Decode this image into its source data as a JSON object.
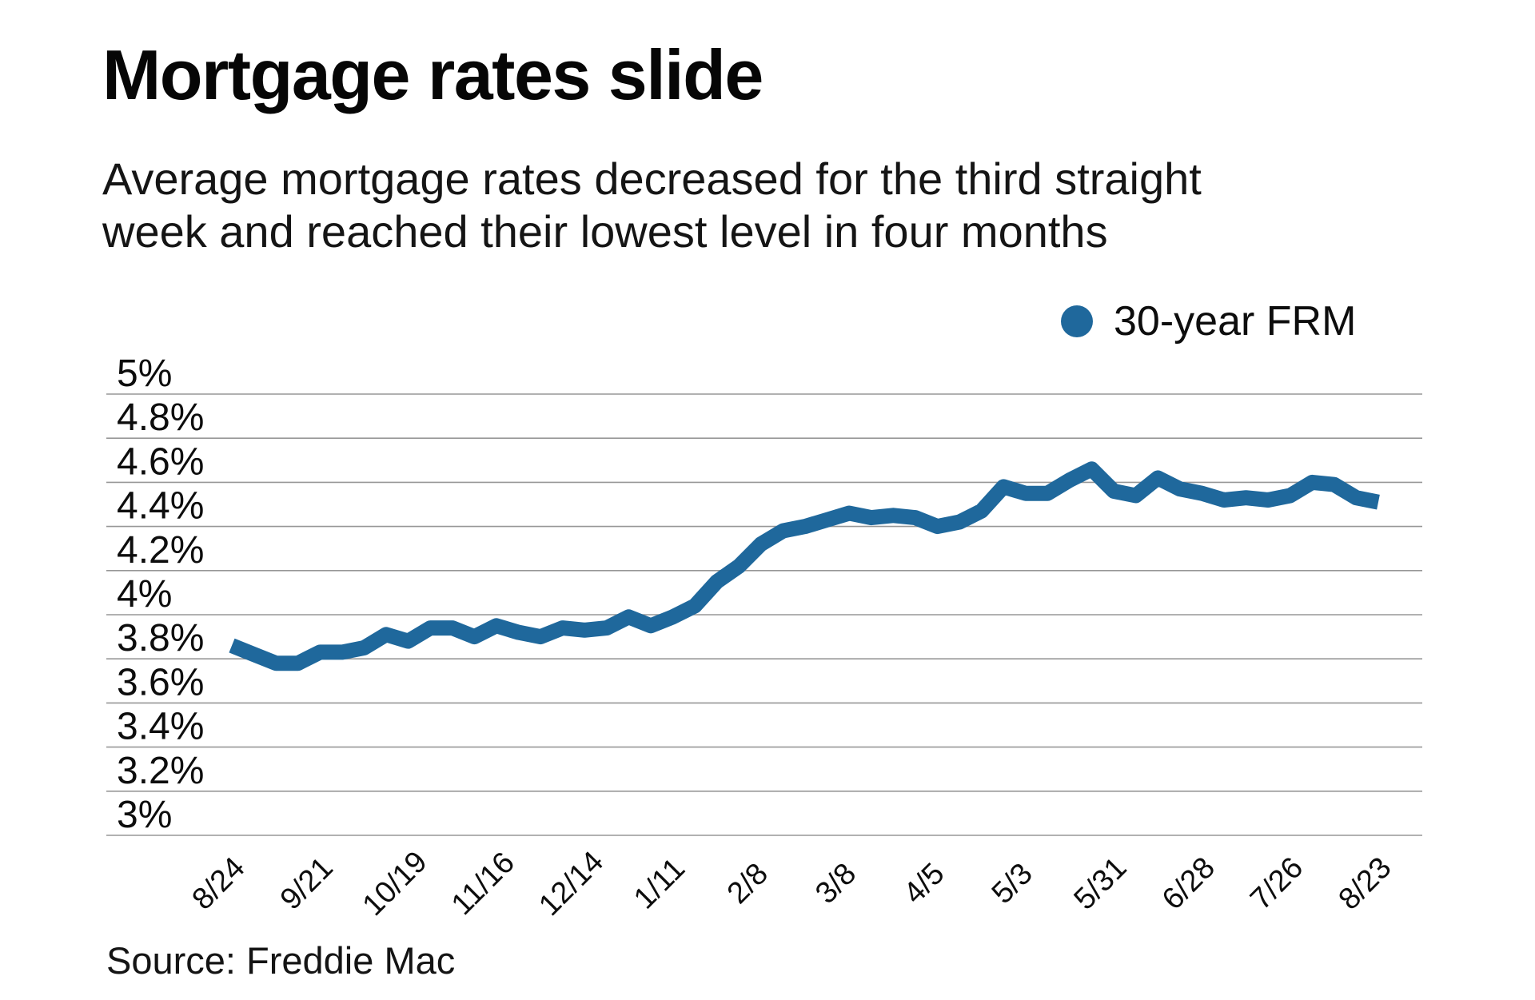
{
  "header": {
    "title": "Mortgage rates slide",
    "subtitle_line1": "Average mortgage rates decreased for the third straight",
    "subtitle_line2": "week and reached their lowest level in four months"
  },
  "legend": {
    "label": "30-year FRM",
    "marker_color": "#1f689c"
  },
  "source_note": "Source: Freddie Mac",
  "chart_data": {
    "type": "line",
    "title": "Mortgage rates slide",
    "subtitle": "Average mortgage rates decreased for the third straight week and reached their lowest level in four months",
    "series": [
      {
        "name": "30-year FRM",
        "color": "#1f689c",
        "values": [
          3.86,
          3.82,
          3.78,
          3.78,
          3.83,
          3.83,
          3.85,
          3.91,
          3.88,
          3.94,
          3.94,
          3.9,
          3.95,
          3.92,
          3.9,
          3.94,
          3.93,
          3.94,
          3.99,
          3.95,
          3.99,
          4.04,
          4.15,
          4.22,
          4.32,
          4.38,
          4.4,
          4.43,
          4.46,
          4.44,
          4.45,
          4.44,
          4.4,
          4.42,
          4.47,
          4.58,
          4.55,
          4.55,
          4.61,
          4.66,
          4.56,
          4.54,
          4.62,
          4.57,
          4.55,
          4.52,
          4.53,
          4.52,
          4.54,
          4.6,
          4.59,
          4.53,
          4.51
        ]
      }
    ],
    "x_tick_labels": [
      "8/24",
      "9/21",
      "10/19",
      "11/16",
      "12/14",
      "1/11",
      "2/8",
      "3/8",
      "4/5",
      "5/3",
      "5/31",
      "6/28",
      "7/26",
      "8/23"
    ],
    "x_tick_every": 4,
    "y_ticks": [
      {
        "value": 5.0,
        "label": "5%"
      },
      {
        "value": 4.8,
        "label": "4.8%"
      },
      {
        "value": 4.6,
        "label": "4.6%"
      },
      {
        "value": 4.4,
        "label": "4.4%"
      },
      {
        "value": 4.2,
        "label": "4.2%"
      },
      {
        "value": 4.0,
        "label": "4%"
      },
      {
        "value": 3.8,
        "label": "3.8%"
      },
      {
        "value": 3.6,
        "label": "3.6%"
      },
      {
        "value": 3.4,
        "label": "3.4%"
      },
      {
        "value": 3.2,
        "label": "3.2%"
      },
      {
        "value": 3.0,
        "label": "3%"
      }
    ],
    "ylim": [
      3,
      5
    ],
    "grid": true,
    "grid_color": "#979797",
    "legend_position": "top-right",
    "source": "Source: Freddie Mac"
  }
}
